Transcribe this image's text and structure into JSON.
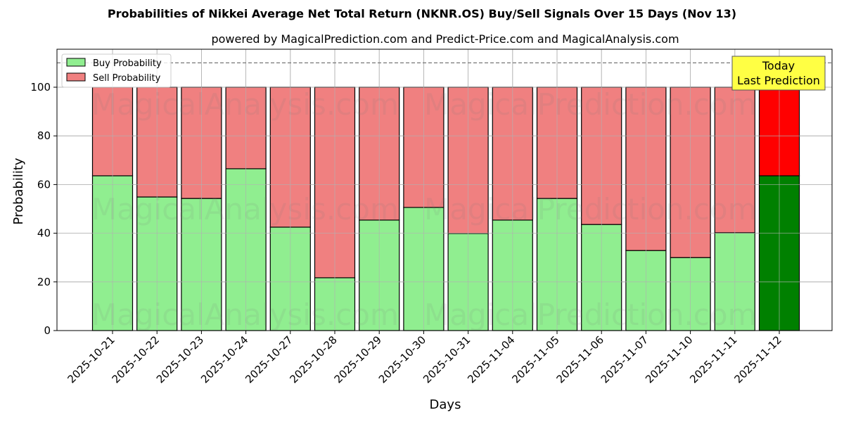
{
  "header": {
    "title": "Probabilities of Nikkei Average Net Total Return (NKNR.OS) Buy/Sell Signals Over 15 Days (Nov 13)",
    "subtitle": "powered by MagicalPrediction.com and Predict-Price.com and MagicalAnalysis.com"
  },
  "legend": {
    "buy_label": "Buy Probability",
    "sell_label": "Sell Probability"
  },
  "annotation": {
    "line1": "Today",
    "line2": "Last Prediction"
  },
  "watermarks": [
    "MagicalAnalysis.com",
    "MagicalPrediction.com"
  ],
  "colors": {
    "buy": "#90ee90",
    "sell": "#f08080",
    "buy_today": "#008000",
    "sell_today": "#ff0000",
    "annotation_bg": "#ffff44"
  },
  "chart_data": {
    "type": "bar",
    "stacked": true,
    "title": "Probabilities of Nikkei Average Net Total Return (NKNR.OS) Buy/Sell Signals Over 15 Days (Nov 13)",
    "subtitle": "powered by MagicalPrediction.com and Predict-Price.com and MagicalAnalysis.com",
    "xlabel": "Days",
    "ylabel": "Probability",
    "ylim": [
      0,
      115
    ],
    "yticks": [
      0,
      20,
      40,
      60,
      80,
      100
    ],
    "reference_line": {
      "y": 110,
      "style": "dashed"
    },
    "grid": true,
    "legend_position": "upper left",
    "categories": [
      "2025-10-21",
      "2025-10-22",
      "2025-10-23",
      "2025-10-24",
      "2025-10-27",
      "2025-10-28",
      "2025-10-29",
      "2025-10-30",
      "2025-10-31",
      "2025-11-04",
      "2025-11-05",
      "2025-11-06",
      "2025-11-07",
      "2025-11-10",
      "2025-11-11",
      "2025-11-12"
    ],
    "series": [
      {
        "name": "Buy Probability",
        "values": [
          63.6,
          54.9,
          54.3,
          66.5,
          42.5,
          21.7,
          45.4,
          50.6,
          39.9,
          45.4,
          54.3,
          43.6,
          32.9,
          30.0,
          40.2,
          63.6
        ]
      },
      {
        "name": "Sell Probability",
        "values": [
          36.4,
          45.1,
          45.7,
          33.5,
          57.5,
          78.3,
          54.6,
          49.4,
          60.1,
          54.6,
          45.7,
          56.4,
          67.1,
          70.0,
          59.8,
          36.4
        ]
      }
    ],
    "annotations": [
      {
        "text": "Today\nLast Prediction",
        "x": "2025-11-12"
      }
    ]
  }
}
